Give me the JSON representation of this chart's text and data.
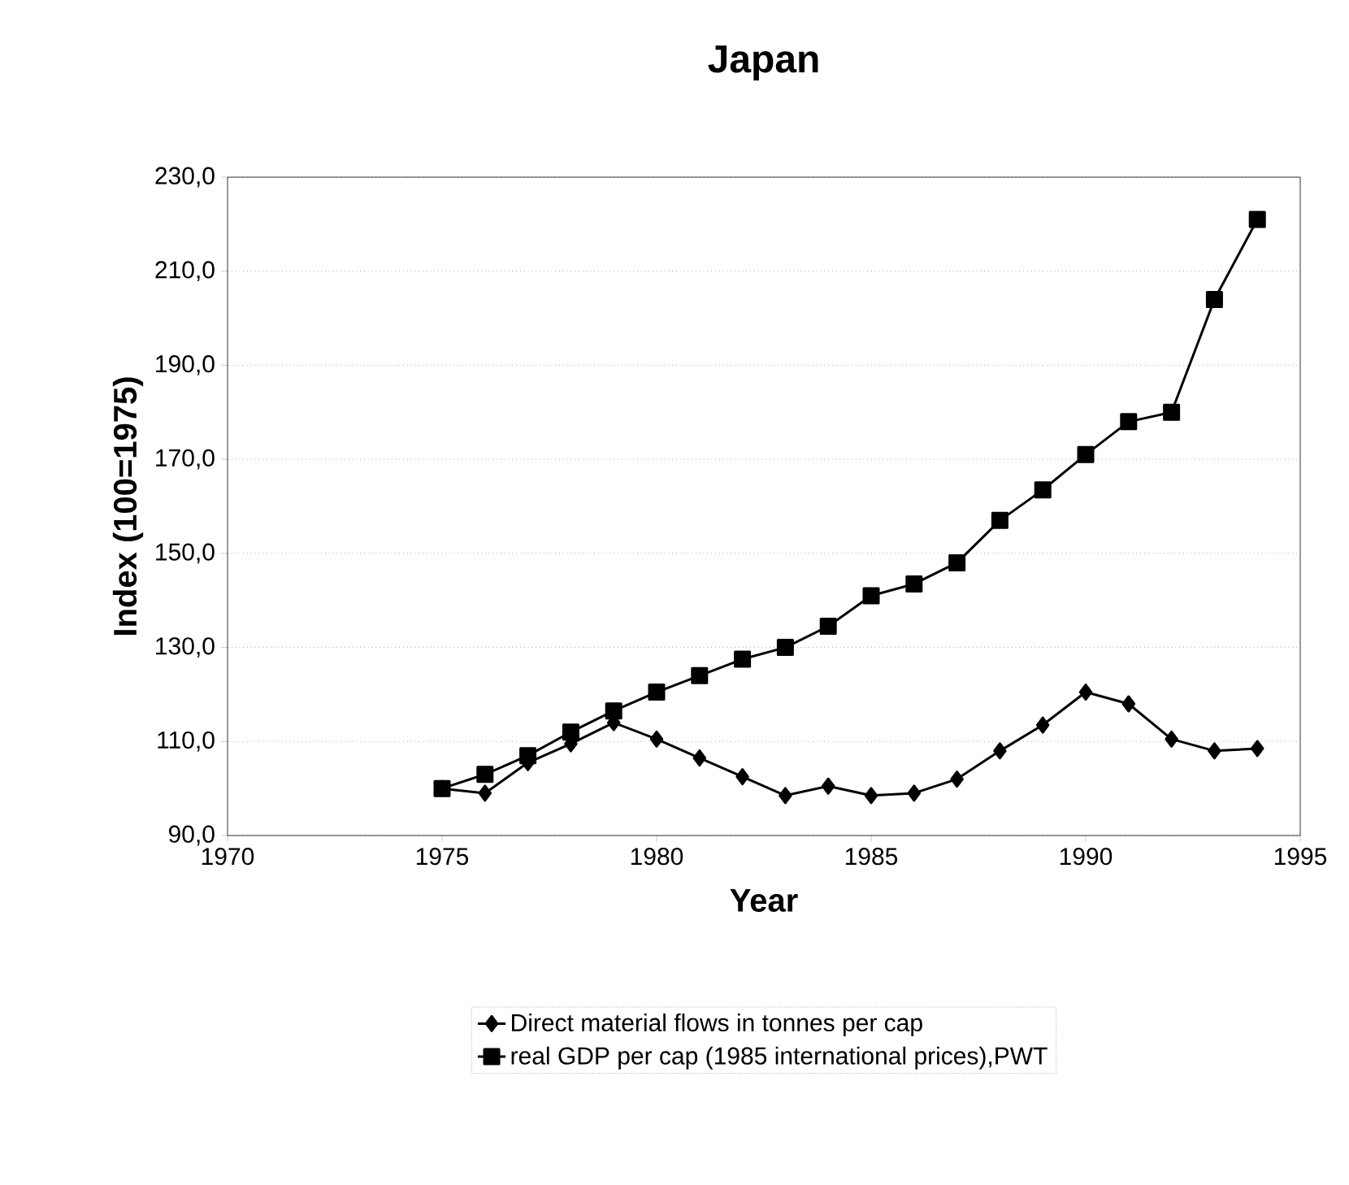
{
  "chart_data": {
    "type": "line",
    "title": "Japan",
    "xlabel": "Year",
    "ylabel": "Index (100=1975)",
    "x": [
      1975,
      1976,
      1977,
      1978,
      1979,
      1980,
      1981,
      1982,
      1983,
      1984,
      1985,
      1986,
      1987,
      1988,
      1989,
      1990,
      1991,
      1992,
      1993,
      1994
    ],
    "series": [
      {
        "name": "Direct material flows in tonnes per cap",
        "color": "#000000",
        "marker": "diamond",
        "values": [
          100,
          99,
          105.5,
          109.5,
          114,
          110.5,
          106.5,
          102.5,
          98.5,
          100.5,
          98.5,
          99,
          102,
          108,
          113.5,
          120.5,
          118,
          110.5,
          108,
          108.5
        ]
      },
      {
        "name": "real GDP per cap (1985 international prices),PWT",
        "color": "#000000",
        "marker": "square",
        "values": [
          100,
          103,
          107,
          112,
          116.5,
          120.5,
          124,
          127.5,
          130,
          134.5,
          141,
          143.5,
          148,
          157,
          163.5,
          171,
          178,
          180,
          204,
          221
        ]
      }
    ],
    "xlim": [
      1970,
      1995
    ],
    "xticks": [
      1970,
      1975,
      1980,
      1985,
      1990,
      1995
    ],
    "ylim": [
      90,
      230
    ],
    "yticks": [
      {
        "value": 90,
        "label": "90,0"
      },
      {
        "value": 110,
        "label": "110,0"
      },
      {
        "value": 130,
        "label": "130,0"
      },
      {
        "value": 150,
        "label": "150,0"
      },
      {
        "value": 170,
        "label": "170,0"
      },
      {
        "value": 190,
        "label": "190,0"
      },
      {
        "value": 210,
        "label": "210,0"
      },
      {
        "value": 230,
        "label": "230,0"
      }
    ],
    "grid": "y",
    "legend": "bottom",
    "line_style": "solid"
  }
}
